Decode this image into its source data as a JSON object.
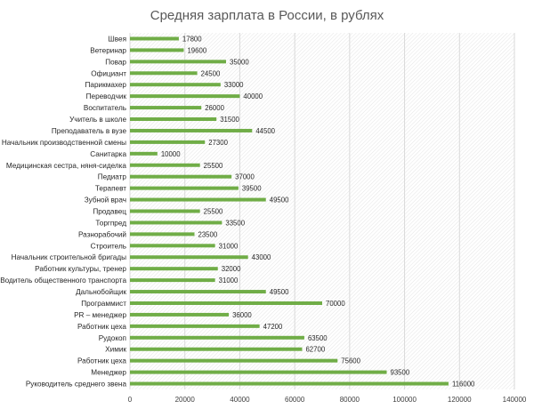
{
  "chart_data": {
    "type": "bar",
    "orientation": "horizontal",
    "title": "Средняя зарплата в России, в рублях",
    "xlabel": "",
    "ylabel": "",
    "xlim": [
      0,
      140000
    ],
    "xticks": [
      0,
      20000,
      40000,
      60000,
      80000,
      100000,
      120000,
      140000
    ],
    "grid": true,
    "bar_color": "#70ad47",
    "grid_color": "#d9d9d9",
    "categories": [
      "Швея",
      "Ветеринар",
      "Повар",
      "Официант",
      "Парикмахер",
      "Переводчик",
      "Воспитатель",
      "Учитель в школе",
      "Преподаватель в вузе",
      "Начальник производственной смены",
      "Санитарка",
      "Медицинская сестра, няня-сиделка",
      "Педиатр",
      "Терапевт",
      "Зубной врач",
      "Продавец",
      "Торгпред",
      "Разнорабочий",
      "Строитель",
      "Начальник строительной бригады",
      "Работник культуры, тренер",
      "Водитель общественного транспорта",
      "Дальнобойщик",
      "Программист",
      "PR – менеджер",
      "Работник цеха",
      "Рудокоп",
      "Химик",
      "Работник цеха",
      "Менеджер",
      "Руководитель среднего звена"
    ],
    "values": [
      17800,
      19600,
      35000,
      24500,
      33000,
      40000,
      26000,
      31500,
      44500,
      27300,
      10000,
      25500,
      37000,
      39500,
      49500,
      25500,
      33500,
      23500,
      31000,
      43000,
      32000,
      31000,
      49500,
      70000,
      36000,
      47200,
      63500,
      62700,
      75600,
      93500,
      116000
    ]
  }
}
